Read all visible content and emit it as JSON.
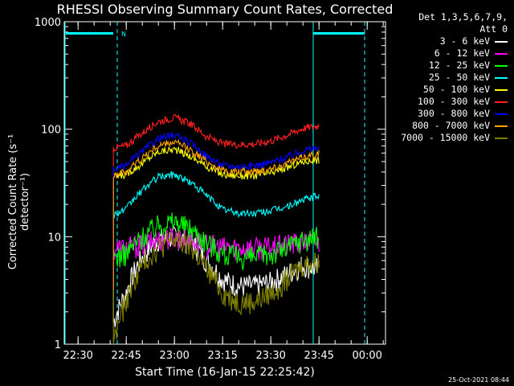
{
  "chart_data": {
    "type": "line",
    "title": "RHESSI Observing Summary Count Rates, Corrected",
    "xlabel": "Start Time (16-Jan-15 22:25:42)",
    "ylabel": "Corrected Count Rate (s⁻¹ detector⁻¹)",
    "yscale": "log",
    "ylim": [
      1,
      1000
    ],
    "xlim_minutes_after_22_25_42": [
      0,
      100
    ],
    "ytick_labels": [
      "1",
      "10",
      "100",
      "1000"
    ],
    "xtick_labels": [
      "22:30",
      "22:45",
      "23:00",
      "23:15",
      "23:30",
      "23:45",
      "00:00"
    ],
    "legend_header": [
      "Det 1,3,5,6,7,9,",
      "Att 0"
    ],
    "legend_placement": "right",
    "flag_label": "N",
    "timestamp": "25-Oct-2021 08:44",
    "markers": {
      "night_bar_color": "#00ffff",
      "solid_lines": [
        "22:25:42",
        "23:43:12"
      ],
      "dashed_lines": [
        "22:42:12",
        "23:59:12"
      ]
    },
    "series": [
      {
        "name": "3 - 6 keV",
        "color": "#ffffff",
        "points": [
          [
            "22:41",
            1.6
          ],
          [
            "22:45",
            3.0
          ],
          [
            "22:50",
            6.5
          ],
          [
            "22:55",
            9.5
          ],
          [
            "23:00",
            10
          ],
          [
            "23:05",
            9
          ],
          [
            "23:10",
            6
          ],
          [
            "23:15",
            4
          ],
          [
            "23:20",
            3.5
          ],
          [
            "23:25",
            3.5
          ],
          [
            "23:30",
            3.8
          ],
          [
            "23:35",
            4.5
          ],
          [
            "23:40",
            5.5
          ],
          [
            "23:45",
            5
          ]
        ]
      },
      {
        "name": "6 - 12 keV",
        "color": "#ff00ff",
        "points": [
          [
            "22:41",
            7.8
          ],
          [
            "22:45",
            8
          ],
          [
            "22:50",
            8.5
          ],
          [
            "22:55",
            9.5
          ],
          [
            "23:00",
            10
          ],
          [
            "23:05",
            9.5
          ],
          [
            "23:10",
            8.5
          ],
          [
            "23:15",
            8
          ],
          [
            "23:20",
            8
          ],
          [
            "23:25",
            8
          ],
          [
            "23:30",
            8
          ],
          [
            "23:35",
            8.5
          ],
          [
            "23:40",
            9
          ],
          [
            "23:45",
            9
          ]
        ]
      },
      {
        "name": "12 - 25 keV",
        "color": "#00ff00",
        "points": [
          [
            "22:41",
            6.5
          ],
          [
            "22:45",
            7
          ],
          [
            "22:50",
            10
          ],
          [
            "22:55",
            13
          ],
          [
            "23:00",
            14
          ],
          [
            "23:05",
            12
          ],
          [
            "23:10",
            9
          ],
          [
            "23:15",
            7
          ],
          [
            "23:20",
            6.5
          ],
          [
            "23:25",
            6.5
          ],
          [
            "23:30",
            7
          ],
          [
            "23:35",
            8
          ],
          [
            "23:40",
            9.5
          ],
          [
            "23:45",
            10
          ]
        ]
      },
      {
        "name": "25 - 50 keV",
        "color": "#00ffff",
        "points": [
          [
            "22:41",
            16
          ],
          [
            "22:45",
            18
          ],
          [
            "22:50",
            27
          ],
          [
            "22:55",
            36
          ],
          [
            "23:00",
            38
          ],
          [
            "23:05",
            32
          ],
          [
            "23:10",
            24
          ],
          [
            "23:15",
            18
          ],
          [
            "23:20",
            16.5
          ],
          [
            "23:25",
            16.5
          ],
          [
            "23:30",
            17.5
          ],
          [
            "23:35",
            19
          ],
          [
            "23:40",
            22
          ],
          [
            "23:45",
            24
          ]
        ]
      },
      {
        "name": "50 - 100 keV",
        "color": "#ffff00",
        "points": [
          [
            "22:41",
            36
          ],
          [
            "22:45",
            38
          ],
          [
            "22:50",
            48
          ],
          [
            "22:55",
            62
          ],
          [
            "23:00",
            65
          ],
          [
            "23:05",
            56
          ],
          [
            "23:10",
            45
          ],
          [
            "23:15",
            38
          ],
          [
            "23:20",
            37
          ],
          [
            "23:25",
            37
          ],
          [
            "23:30",
            39
          ],
          [
            "23:35",
            44
          ],
          [
            "23:40",
            50
          ],
          [
            "23:45",
            52
          ]
        ]
      },
      {
        "name": "100 - 300 keV",
        "color": "#ff2020",
        "points": [
          [
            "22:41",
            67
          ],
          [
            "22:45",
            70
          ],
          [
            "22:50",
            92
          ],
          [
            "22:55",
            118
          ],
          [
            "23:00",
            128
          ],
          [
            "23:05",
            112
          ],
          [
            "23:10",
            85
          ],
          [
            "23:15",
            73
          ],
          [
            "23:20",
            72
          ],
          [
            "23:25",
            73
          ],
          [
            "23:30",
            78
          ],
          [
            "23:35",
            88
          ],
          [
            "23:40",
            102
          ],
          [
            "23:45",
            108
          ]
        ]
      },
      {
        "name": "300 - 800 keV",
        "color": "#0000ff",
        "points": [
          [
            "22:41",
            42
          ],
          [
            "22:45",
            46
          ],
          [
            "22:50",
            62
          ],
          [
            "22:55",
            82
          ],
          [
            "23:00",
            88
          ],
          [
            "23:05",
            74
          ],
          [
            "23:10",
            56
          ],
          [
            "23:15",
            46
          ],
          [
            "23:20",
            45
          ],
          [
            "23:25",
            46
          ],
          [
            "23:30",
            49
          ],
          [
            "23:35",
            55
          ],
          [
            "23:40",
            63
          ],
          [
            "23:45",
            68
          ]
        ]
      },
      {
        "name": "800 - 7000 keV",
        "color": "#ffa500",
        "points": [
          [
            "22:41",
            38
          ],
          [
            "22:45",
            40
          ],
          [
            "22:50",
            54
          ],
          [
            "22:55",
            70
          ],
          [
            "23:00",
            76
          ],
          [
            "23:05",
            64
          ],
          [
            "23:10",
            50
          ],
          [
            "23:15",
            41
          ],
          [
            "23:20",
            40
          ],
          [
            "23:25",
            41
          ],
          [
            "23:30",
            43
          ],
          [
            "23:35",
            48
          ],
          [
            "23:40",
            55
          ],
          [
            "23:45",
            60
          ]
        ]
      },
      {
        "name": "7000 - 15000 keV",
        "color": "#808000",
        "points": [
          [
            "22:41",
            1.0
          ],
          [
            "22:45",
            2.5
          ],
          [
            "22:50",
            5.5
          ],
          [
            "22:55",
            8
          ],
          [
            "23:00",
            9.5
          ],
          [
            "23:05",
            8
          ],
          [
            "23:10",
            5
          ],
          [
            "23:15",
            3
          ],
          [
            "23:20",
            2.5
          ],
          [
            "23:25",
            2.5
          ],
          [
            "23:30",
            3
          ],
          [
            "23:35",
            4
          ],
          [
            "23:40",
            5.5
          ],
          [
            "23:45",
            6
          ]
        ]
      }
    ]
  }
}
